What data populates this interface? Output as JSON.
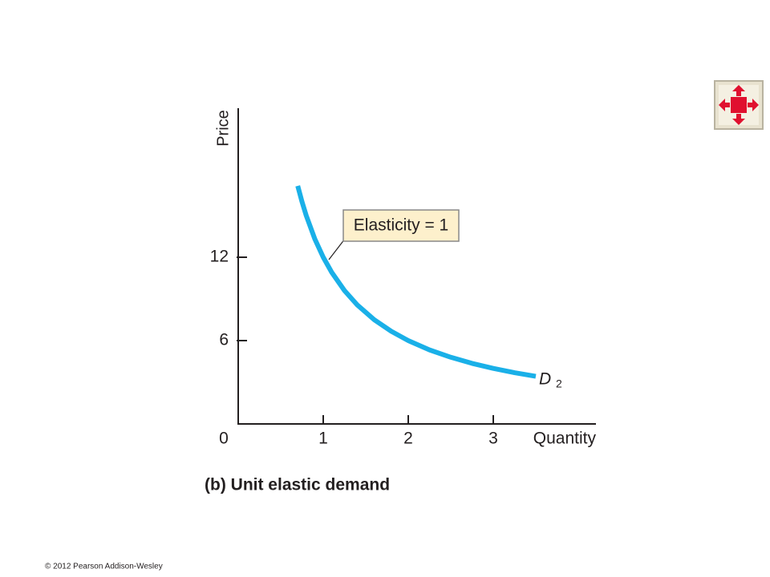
{
  "chart_data": {
    "type": "line",
    "y_axis_label": "Price",
    "x_axis_label": "Quantity",
    "title": "(b) Unit elastic demand",
    "annotation": "Elasticity = 1",
    "curve_label": {
      "text": "D",
      "subscript": "2"
    },
    "x": [
      0.7,
      0.75,
      0.8,
      0.9,
      1,
      1.1,
      1.25,
      1.4,
      1.6,
      1.8,
      2,
      2.25,
      2.5,
      2.75,
      3,
      3.25,
      3.5
    ],
    "series": [
      {
        "color": "#1ab0e8",
        "values": [
          17.14,
          16,
          15,
          13.33,
          12,
          10.91,
          9.6,
          8.57,
          7.5,
          6.67,
          6,
          5.33,
          4.8,
          4.36,
          4,
          3.69,
          3.43
        ]
      }
    ],
    "xlim": [
      0,
      4.2
    ],
    "ylim": [
      0,
      22.7
    ],
    "xticks": [
      0,
      1,
      2,
      3
    ],
    "yticks": [
      6,
      12
    ],
    "copyright": "© 2012 Pearson Addison-Wesley"
  }
}
